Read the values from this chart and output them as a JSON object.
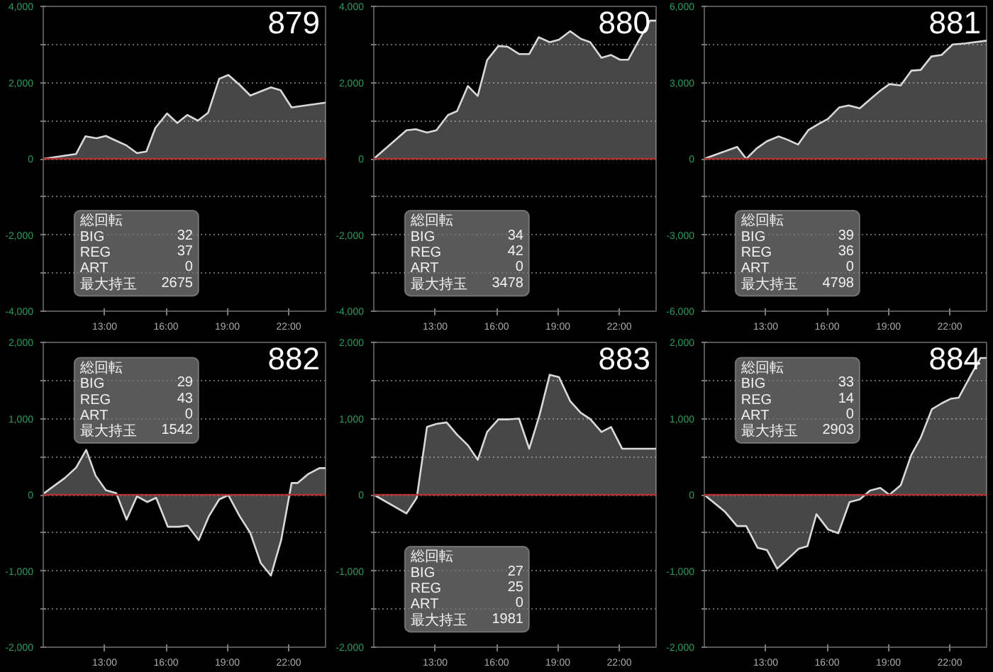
{
  "chart_data": [
    {
      "type": "area",
      "title": "879",
      "color": "#d9d9d9",
      "xlim": [
        10,
        23.8
      ],
      "xticks": [
        {
          "value": 13,
          "label": "13:00"
        },
        {
          "value": 16,
          "label": "16:00"
        },
        {
          "value": 19,
          "label": "19:00"
        },
        {
          "value": 22,
          "label": "22:00"
        }
      ],
      "ylim": [
        -4000,
        4000
      ],
      "yticks": [
        {
          "value": -4000,
          "label": "-4,000"
        },
        {
          "value": -3000,
          "label": null
        },
        {
          "value": -2000,
          "label": "-2,000"
        },
        {
          "value": -1000,
          "label": null
        },
        0,
        {
          "value": 1000,
          "label": null
        },
        {
          "value": 2000,
          "label": "2,000"
        },
        {
          "value": 3000,
          "label": null
        },
        {
          "value": 4000,
          "label": "4,000"
        }
      ],
      "grid": "y",
      "ref_lines": [
        {
          "axis": "y",
          "value": 0,
          "color": "#b03030"
        }
      ],
      "annotations": [
        "総回転",
        "BIG 32",
        "REG 37",
        "ART 0",
        "最大持玉 2675"
      ],
      "x": [
        10,
        11.6,
        12.06,
        12.6,
        13.06,
        13.56,
        14.07,
        14.58,
        15.04,
        15.48,
        16.05,
        16.55,
        17.04,
        17.56,
        18.06,
        18.6,
        19.05,
        19.6,
        20.12,
        21.13,
        21.6,
        22.14,
        22.94,
        23.8
      ],
      "values": [
        0,
        125,
        590,
        540,
        600,
        475,
        350,
        150,
        190,
        810,
        1190,
        940,
        1150,
        1000,
        1210,
        2100,
        2200,
        1940,
        1660,
        1875,
        1800,
        1350,
        1410,
        1475
      ]
    },
    {
      "type": "area",
      "title": "880",
      "color": "#d9d9d9",
      "xlim": [
        10,
        23.8
      ],
      "xticks": [
        {
          "value": 13,
          "label": "13:00"
        },
        {
          "value": 16,
          "label": "16:00"
        },
        {
          "value": 19,
          "label": "19:00"
        },
        {
          "value": 22,
          "label": "22:00"
        }
      ],
      "ylim": [
        -4000,
        4000
      ],
      "yticks": [
        {
          "value": -4000,
          "label": "-4,000"
        },
        {
          "value": -3000,
          "label": null
        },
        {
          "value": -2000,
          "label": "-2,000"
        },
        {
          "value": -1000,
          "label": null
        },
        0,
        {
          "value": 1000,
          "label": null
        },
        {
          "value": 2000,
          "label": "2,000"
        },
        {
          "value": 3000,
          "label": null
        },
        {
          "value": 4000,
          "label": "4,000"
        }
      ],
      "grid": "y",
      "ref_lines": [
        {
          "axis": "y",
          "value": 0,
          "color": "#b03030"
        }
      ],
      "annotations": [
        "総回転",
        "BIG 34",
        "REG 42",
        "ART 0",
        "最大持玉 3478"
      ],
      "x": [
        10,
        11.6,
        12.05,
        12.6,
        13.06,
        13.63,
        14.07,
        14.6,
        15.08,
        15.54,
        16.09,
        16.55,
        17.1,
        17.6,
        18.06,
        18.6,
        19.05,
        19.6,
        20.12,
        20.58,
        21.13,
        21.6,
        22.04,
        22.44,
        23.04,
        23.5,
        23.8
      ],
      "values": [
        0,
        750,
        775,
        690,
        750,
        1150,
        1250,
        1910,
        1650,
        2590,
        2960,
        2940,
        2750,
        2750,
        3190,
        3060,
        3125,
        3350,
        3150,
        3060,
        2650,
        2725,
        2600,
        2600,
        3190,
        3625,
        3625
      ]
    },
    {
      "type": "area",
      "title": "881",
      "color": "#d9d9d9",
      "xlim": [
        10,
        23.8
      ],
      "xticks": [
        {
          "value": 13,
          "label": "13:00"
        },
        {
          "value": 16,
          "label": "16:00"
        },
        {
          "value": 19,
          "label": "19:00"
        },
        {
          "value": 22,
          "label": "22:00"
        }
      ],
      "ylim": [
        -6000,
        6000
      ],
      "yticks": [
        {
          "value": -6000,
          "label": "-6,000"
        },
        {
          "value": -4500,
          "label": null
        },
        {
          "value": -3000,
          "label": "-3,000"
        },
        {
          "value": -1500,
          "label": null
        },
        0,
        {
          "value": 1500,
          "label": null
        },
        {
          "value": 3000,
          "label": "3,000"
        },
        {
          "value": 4500,
          "label": null
        },
        {
          "value": 6000,
          "label": "6,000"
        }
      ],
      "grid": "y",
      "ref_lines": [
        {
          "axis": "y",
          "value": 0,
          "color": "#b03030"
        }
      ],
      "annotations": [
        "総回転",
        "BIG 39",
        "REG 36",
        "ART 0",
        "最大持玉 4798"
      ],
      "x": [
        10,
        11.6,
        12.05,
        12.56,
        13.06,
        13.63,
        14.07,
        14.58,
        15.08,
        15.54,
        16.05,
        16.6,
        17.06,
        17.6,
        18.1,
        18.6,
        19.05,
        19.6,
        20.12,
        20.58,
        21.1,
        21.6,
        22.14,
        22.75,
        23.8
      ],
      "values": [
        0,
        470,
        0,
        410,
        690,
        880,
        750,
        560,
        1125,
        1350,
        1575,
        2025,
        2100,
        1990,
        2340,
        2680,
        2940,
        2890,
        3470,
        3500,
        4030,
        4090,
        4500,
        4540,
        4650
      ]
    },
    {
      "type": "area",
      "title": "882",
      "color": "#d9d9d9",
      "xlim": [
        10,
        23.8
      ],
      "xticks": [
        {
          "value": 13,
          "label": "13:00"
        },
        {
          "value": 16,
          "label": "16:00"
        },
        {
          "value": 19,
          "label": "19:00"
        },
        {
          "value": 22,
          "label": "22:00"
        }
      ],
      "ylim": [
        -2000,
        2000
      ],
      "yticks": [
        {
          "value": -2000,
          "label": "-2,000"
        },
        {
          "value": -1500,
          "label": null
        },
        {
          "value": -1000,
          "label": "-1,000"
        },
        {
          "value": -500,
          "label": null
        },
        0,
        {
          "value": 500,
          "label": null
        },
        {
          "value": 1000,
          "label": "1,000"
        },
        {
          "value": 1500,
          "label": null
        },
        {
          "value": 2000,
          "label": "2,000"
        }
      ],
      "grid": "y",
      "ref_lines": [
        {
          "axis": "y",
          "value": 0,
          "color": "#b03030"
        }
      ],
      "annotations": [
        "総回転",
        "BIG 29",
        "REG 43",
        "ART 0",
        "最大持玉 1542"
      ],
      "x": [
        10,
        11.05,
        11.6,
        12.1,
        12.56,
        13.06,
        13.57,
        14.07,
        14.58,
        15.08,
        15.52,
        16.09,
        16.6,
        17.06,
        17.6,
        18.1,
        18.6,
        19.05,
        19.6,
        20.12,
        20.63,
        21.13,
        21.63,
        22.14,
        22.44,
        22.94,
        23.5,
        23.8
      ],
      "values": [
        12,
        220,
        355,
        590,
        250,
        60,
        20,
        -325,
        -20,
        -95,
        -40,
        -420,
        -420,
        -405,
        -595,
        -280,
        -60,
        -5,
        -280,
        -500,
        -895,
        -1060,
        -595,
        155,
        155,
        270,
        350,
        350
      ]
    },
    {
      "type": "area",
      "title": "883",
      "color": "#d9d9d9",
      "xlim": [
        10,
        23.8
      ],
      "xticks": [
        {
          "value": 13,
          "label": "13:00"
        },
        {
          "value": 16,
          "label": "16:00"
        },
        {
          "value": 19,
          "label": "19:00"
        },
        {
          "value": 22,
          "label": "22:00"
        }
      ],
      "ylim": [
        -2000,
        2000
      ],
      "yticks": [
        {
          "value": -2000,
          "label": "-2,000"
        },
        {
          "value": -1500,
          "label": null
        },
        {
          "value": -1000,
          "label": "-1,000"
        },
        {
          "value": -500,
          "label": null
        },
        0,
        {
          "value": 500,
          "label": null
        },
        {
          "value": 1000,
          "label": "1,000"
        },
        {
          "value": 1500,
          "label": null
        },
        {
          "value": 2000,
          "label": "2,000"
        }
      ],
      "grid": "y",
      "ref_lines": [
        {
          "axis": "y",
          "value": 0,
          "color": "#b03030"
        }
      ],
      "annotations": [
        "総回転",
        "BIG 27",
        "REG 25",
        "ART 0",
        "最大持玉 1981"
      ],
      "x": [
        10,
        11.6,
        12.1,
        12.6,
        13.06,
        13.56,
        14.07,
        14.6,
        15.08,
        15.54,
        16.09,
        16.6,
        17.1,
        17.6,
        18.1,
        18.6,
        19.05,
        19.6,
        20.12,
        20.58,
        21.13,
        21.6,
        22.14,
        23.8
      ],
      "values": [
        0,
        -245,
        -40,
        890,
        930,
        950,
        790,
        650,
        460,
        825,
        990,
        990,
        1000,
        605,
        1045,
        1575,
        1545,
        1230,
        1075,
        995,
        825,
        890,
        605,
        605
      ]
    },
    {
      "type": "area",
      "title": "884",
      "color": "#d9d9d9",
      "xlim": [
        10,
        23.8
      ],
      "xticks": [
        {
          "value": 13,
          "label": "13:00"
        },
        {
          "value": 16,
          "label": "16:00"
        },
        {
          "value": 19,
          "label": "19:00"
        },
        {
          "value": 22,
          "label": "22:00"
        }
      ],
      "ylim": [
        -2000,
        2000
      ],
      "yticks": [
        {
          "value": -2000,
          "label": "-2,000"
        },
        {
          "value": -1500,
          "label": null
        },
        {
          "value": -1000,
          "label": "-1,000"
        },
        {
          "value": -500,
          "label": null
        },
        0,
        {
          "value": 500,
          "label": null
        },
        {
          "value": 1000,
          "label": "1,000"
        },
        {
          "value": 1500,
          "label": null
        },
        {
          "value": 2000,
          "label": "2,000"
        }
      ],
      "grid": "y",
      "ref_lines": [
        {
          "axis": "y",
          "value": 0,
          "color": "#b03030"
        }
      ],
      "annotations": [
        "総回転",
        "BIG 33",
        "REG 14",
        "ART 0",
        "最大持玉 2903"
      ],
      "x": [
        10,
        11.0,
        11.6,
        12.05,
        12.6,
        13.06,
        13.56,
        14.07,
        14.6,
        15.04,
        15.48,
        16.05,
        16.55,
        17.1,
        17.6,
        18.1,
        18.6,
        19.05,
        19.6,
        20.12,
        20.58,
        21.13,
        21.6,
        22.04,
        22.44,
        23.04,
        23.5,
        23.8
      ],
      "values": [
        0,
        -220,
        -410,
        -410,
        -695,
        -725,
        -970,
        -845,
        -710,
        -675,
        -255,
        -455,
        -505,
        -95,
        -60,
        55,
        90,
        0,
        125,
        525,
        750,
        1125,
        1200,
        1260,
        1275,
        1575,
        1795,
        1795
      ]
    }
  ]
}
